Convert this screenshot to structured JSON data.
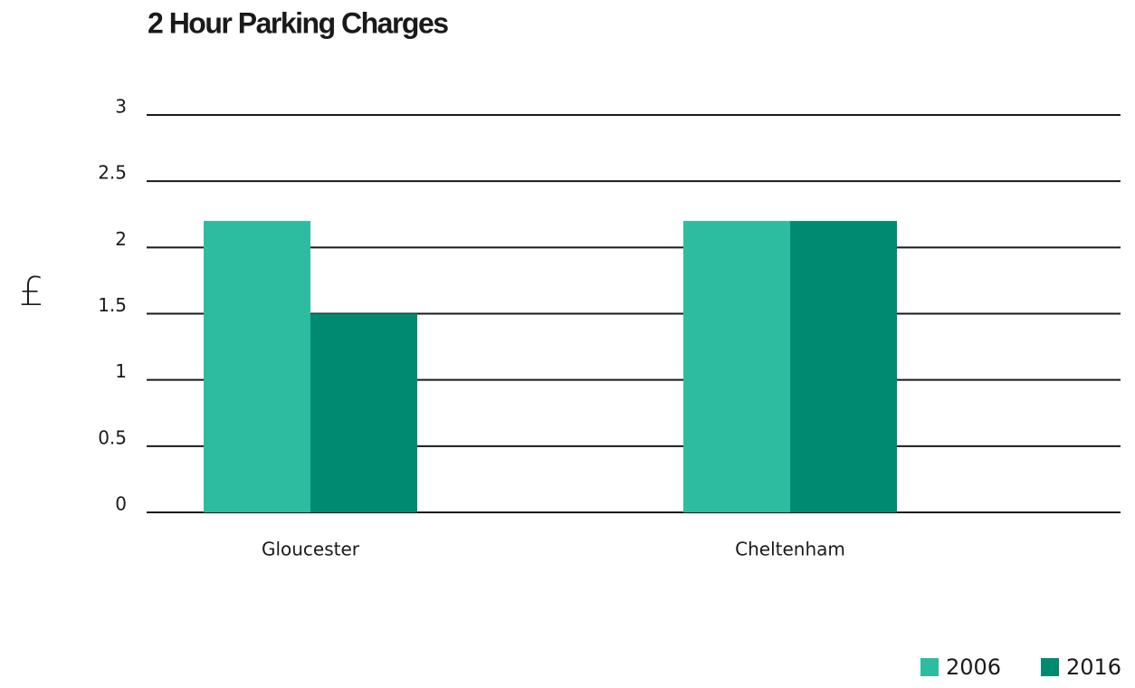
{
  "chart_data": {
    "type": "bar",
    "title": "2 Hour Parking Charges",
    "ylabel": "£",
    "categories": [
      "Gloucester",
      "Cheltenham"
    ],
    "series": [
      {
        "name": "2006",
        "color": "#2ebca1",
        "values": [
          2.2,
          2.2
        ]
      },
      {
        "name": "2016",
        "color": "#008a72",
        "values": [
          1.5,
          2.2
        ]
      }
    ],
    "ylim": [
      0,
      3
    ],
    "yticks": [
      0,
      0.5,
      1,
      1.5,
      2,
      2.5,
      3
    ],
    "grid": true,
    "legend": "bottom-right"
  }
}
